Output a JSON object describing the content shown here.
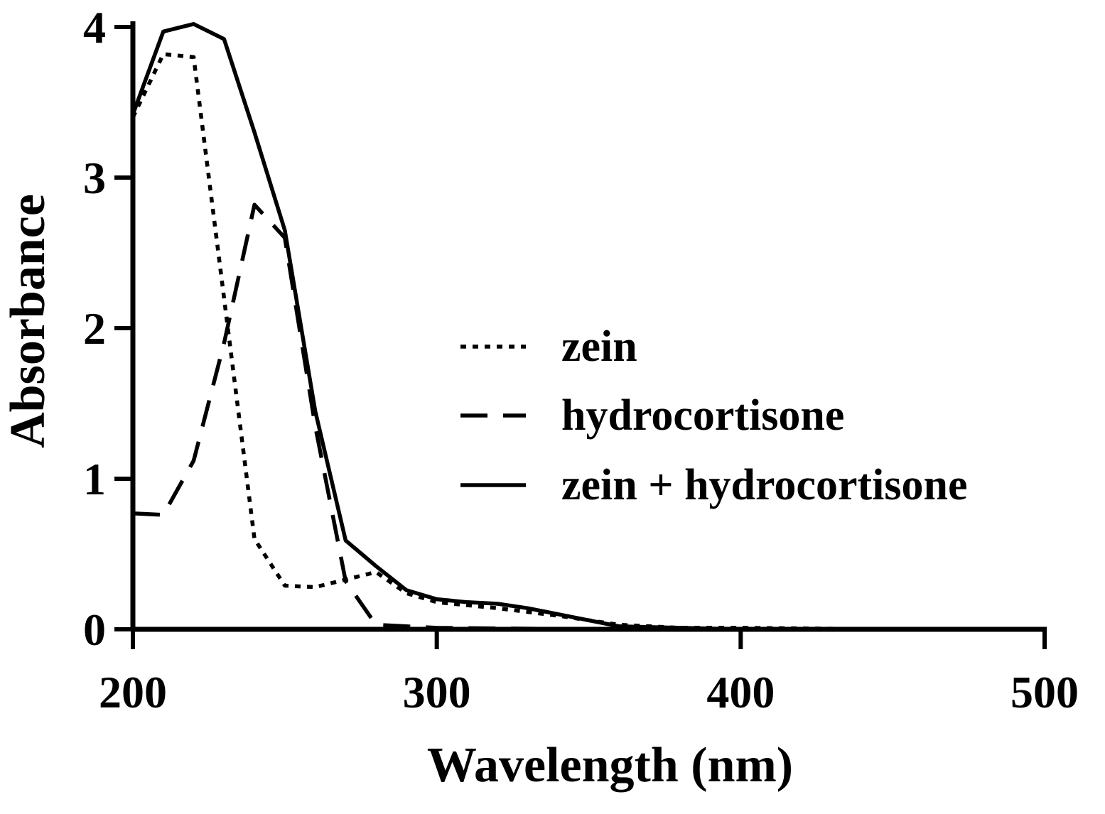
{
  "chart_data": {
    "type": "line",
    "xlabel": "Wavelength (nm)",
    "ylabel": "Absorbance",
    "xlim": [
      200,
      500
    ],
    "ylim": [
      0,
      4
    ],
    "x_ticks": [
      "200",
      "300",
      "400",
      "500"
    ],
    "y_ticks": [
      "0",
      "1",
      "2",
      "3",
      "4"
    ],
    "grid": false,
    "legend": "center-right",
    "series": [
      {
        "name": "zein",
        "style": "dotted",
        "x": [
          200,
          210,
          220,
          230,
          240,
          250,
          260,
          270,
          280,
          290,
          300,
          320,
          340,
          360,
          380,
          400,
          450,
          500
        ],
        "y": [
          3.4,
          3.82,
          3.8,
          2.2,
          0.6,
          0.29,
          0.28,
          0.33,
          0.38,
          0.24,
          0.18,
          0.14,
          0.09,
          0.03,
          0.01,
          0.01,
          0.0,
          0.0
        ]
      },
      {
        "name": "hydrocortisone",
        "style": "dashed",
        "x": [
          200,
          210,
          220,
          230,
          240,
          250,
          260,
          270,
          280,
          290,
          300,
          350,
          400,
          450,
          500
        ],
        "y": [
          0.77,
          0.76,
          1.12,
          1.9,
          2.82,
          2.6,
          1.35,
          0.32,
          0.03,
          0.02,
          0.01,
          0.0,
          0.0,
          0.0,
          0.0
        ]
      },
      {
        "name": "zein + hydrocortisone",
        "style": "solid",
        "x": [
          200,
          210,
          220,
          230,
          240,
          250,
          260,
          270,
          280,
          290,
          300,
          310,
          320,
          330,
          340,
          350,
          360,
          380,
          400,
          450,
          500
        ],
        "y": [
          3.42,
          3.97,
          4.02,
          3.92,
          3.3,
          2.65,
          1.45,
          0.59,
          0.42,
          0.26,
          0.2,
          0.18,
          0.17,
          0.14,
          0.1,
          0.06,
          0.02,
          0.01,
          0.0,
          0.0,
          0.0
        ]
      }
    ]
  }
}
